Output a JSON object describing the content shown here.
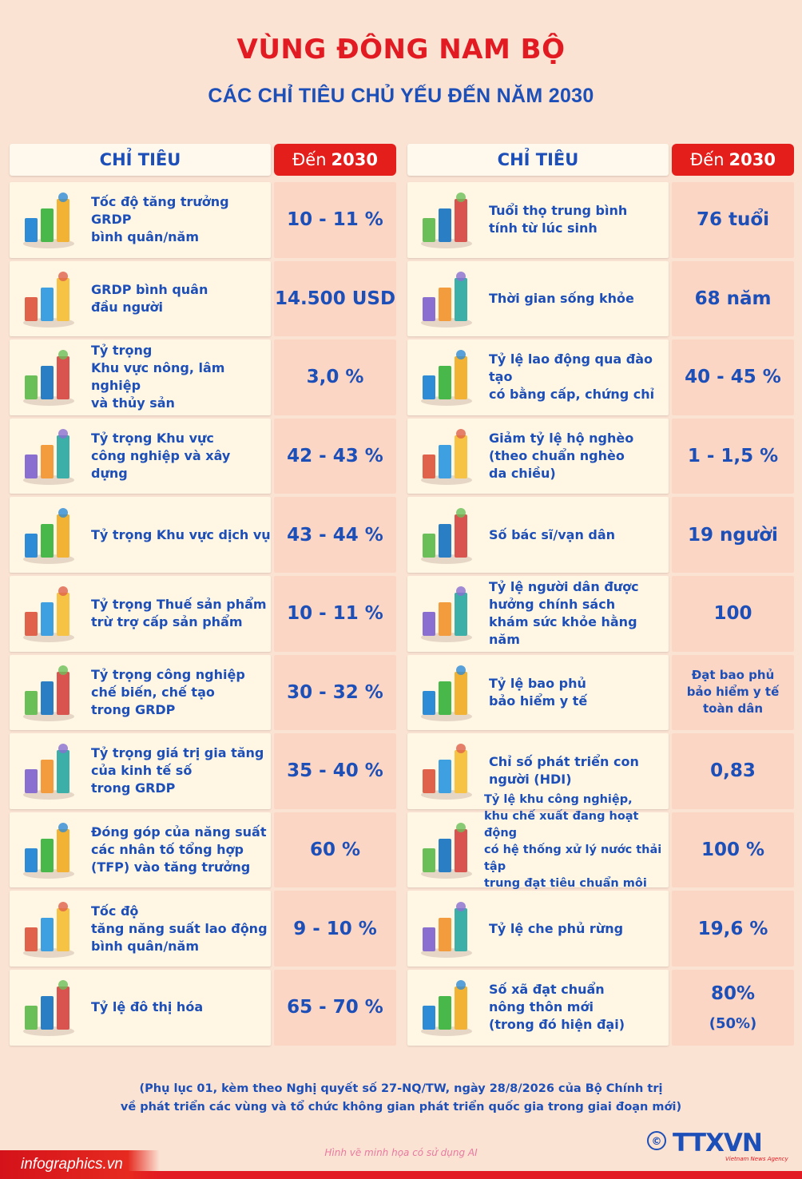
{
  "header": {
    "title": "VÙNG ĐÔNG NAM BỘ",
    "subtitle": "CÁC CHỈ TIÊU CHỦ YẾU ĐẾN NĂM 2030"
  },
  "columns": {
    "name_header": "CHỈ TIÊU",
    "value_header_prefix": "Đến",
    "value_header_year": "2030"
  },
  "left_rows": [
    {
      "label": "Tốc độ tăng trưởng GRDP\nbình quân/năm",
      "value": "10 - 11 %",
      "icon": "growth-chart-icon"
    },
    {
      "label": "GRDP bình quân\nđầu người",
      "value": "14.500 USD",
      "icon": "money-family-icon"
    },
    {
      "label": "Tỷ trọng\nKhu vực nông, lâm nghiệp\nvà thủy sản",
      "value": "3,0 %",
      "icon": "agriculture-icon"
    },
    {
      "label": "Tỷ trọng Khu vực\ncông nghiệp và xây dựng",
      "value": "42 - 43 %",
      "icon": "factory-icon"
    },
    {
      "label": "Tỷ trọng Khu vực dịch vụ",
      "value": "43 - 44 %",
      "icon": "services-city-icon"
    },
    {
      "label": "Tỷ trọng Thuế sản phẩm\ntrừ trợ cấp sản phẩm",
      "value": "10 - 11 %",
      "icon": "tax-icon"
    },
    {
      "label": "Tỷ trọng công nghiệp\nchế biến, chế tạo\ntrong GRDP",
      "value": "30 - 32 %",
      "icon": "manufacturing-icon"
    },
    {
      "label": "Tỷ trọng giá trị gia tăng\ncủa kinh tế số\ntrong GRDP",
      "value": "35 - 40 %",
      "icon": "digital-economy-icon"
    },
    {
      "label": "Đóng góp của năng suất\ncác nhân tố tổng hợp\n(TFP) vào tăng trưởng",
      "value": "60 %",
      "icon": "tfp-growth-icon"
    },
    {
      "label": "Tốc độ\ntăng năng suất lao động\nbình quân/năm",
      "value": "9 - 10 %",
      "icon": "labor-productivity-icon"
    },
    {
      "label": "Tỷ lệ đô thị hóa",
      "value": "65 - 70 %",
      "icon": "urban-buildings-icon"
    }
  ],
  "right_rows": [
    {
      "label": "Tuổi thọ trung bình\ntính từ lúc sinh",
      "value": "76 tuổi",
      "icon": "elderly-couple-icon"
    },
    {
      "label": "Thời gian sống khỏe",
      "value": "68 năm",
      "icon": "healthy-elderly-icon"
    },
    {
      "label": "Tỷ lệ lao động qua đào tạo\ncó bằng cấp, chứng chỉ",
      "value": "40 - 45 %",
      "icon": "trained-worker-icon"
    },
    {
      "label": "Giảm tỷ lệ hộ nghèo\n(theo chuẩn nghèo\nda chiều)",
      "value": "1 - 1,5 %",
      "icon": "poor-household-icon"
    },
    {
      "label": "Số bác sĩ/vạn dân",
      "value": "19 người",
      "icon": "doctors-icon"
    },
    {
      "label": "Tỷ lệ người dân được\nhưởng chính sách\nkhám sức khỏe hằng năm",
      "value": "100",
      "icon": "health-checkup-icon"
    },
    {
      "label": "Tỷ lệ bao phủ\nbảo hiểm y tế",
      "value": "Đạt bao phủ\nbảo hiểm y tế\ntoàn dân",
      "icon": "health-insurance-icon"
    },
    {
      "label": "Chỉ số phát triển con\nngười (HDI)",
      "value": "0,83",
      "icon": "family-hdi-icon"
    },
    {
      "label": "Tỷ lệ khu công nghiệp,\nkhu chế xuất đang hoạt động\ncó hệ thống xử lý nước thải tập\ntrung đạt tiêu chuẩn môi trường",
      "value": "100 %",
      "icon": "wastewater-plant-icon"
    },
    {
      "label": "Tỷ lệ che phủ rừng",
      "value": "19,6 %",
      "icon": "forest-icon"
    },
    {
      "label": "Số xã đạt chuẩn\nnông thôn mới\n(trong đó hiện đại)",
      "value": "80%",
      "value_sub": "(50%)",
      "icon": "rural-village-icon"
    }
  ],
  "footnote": {
    "line1": "(Phụ lục 01, kèm theo Nghị quyết số 27-NQ/TW, ngày 28/8/2026 của Bộ Chính trị",
    "line2": "về phát triển các vùng và tổ chức không gian phát triển quốc gia trong giai đoạn mới)"
  },
  "credit": "Hình vẽ minh họa có sử dụng AI",
  "brand": "infographics.vn",
  "logo": {
    "copyright": "©",
    "name": "TTXVN",
    "tagline": "Vietnam News Agency"
  },
  "colors": {
    "red": "#e21a22",
    "blue": "#1d4fb8",
    "background": "#fbe3d3",
    "value_cell": "#fcd6c4",
    "name_cell": "#fff6e3"
  }
}
